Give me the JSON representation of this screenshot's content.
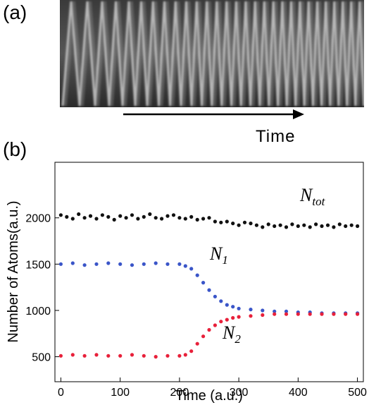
{
  "panel_a": {
    "label": "(a)",
    "arrow_caption": "Time"
  },
  "panel_b": {
    "label": "(b)"
  },
  "chart_data": {
    "type": "scatter",
    "xlabel": "Time (a.u.)",
    "ylabel": "Number of Atoms(a.u.)",
    "xlim": [
      -10,
      510
    ],
    "ylim": [
      230,
      2600
    ],
    "xticks": [
      0,
      100,
      200,
      300,
      400,
      500
    ],
    "yticks": [
      500,
      1000,
      1500,
      2000
    ],
    "grid": false,
    "colors": {
      "N_tot": "#111111",
      "N_1": "#3a55c8",
      "N_2": "#e8203a"
    },
    "series": [
      {
        "name": "N_tot",
        "label_main": "N",
        "label_sub": "tot",
        "points": [
          [
            0,
            2030
          ],
          [
            10,
            2010
          ],
          [
            20,
            1990
          ],
          [
            30,
            2040
          ],
          [
            40,
            2000
          ],
          [
            50,
            2020
          ],
          [
            60,
            1990
          ],
          [
            70,
            2030
          ],
          [
            80,
            2010
          ],
          [
            90,
            1980
          ],
          [
            100,
            2020
          ],
          [
            110,
            2000
          ],
          [
            120,
            2030
          ],
          [
            130,
            1990
          ],
          [
            140,
            2010
          ],
          [
            150,
            2040
          ],
          [
            160,
            2000
          ],
          [
            170,
            1990
          ],
          [
            180,
            2020
          ],
          [
            190,
            2030
          ],
          [
            200,
            2000
          ],
          [
            210,
            1990
          ],
          [
            220,
            2010
          ],
          [
            230,
            1980
          ],
          [
            240,
            1990
          ],
          [
            250,
            2000
          ],
          [
            260,
            1960
          ],
          [
            270,
            1950
          ],
          [
            280,
            1960
          ],
          [
            290,
            1940
          ],
          [
            300,
            1920
          ],
          [
            310,
            1950
          ],
          [
            320,
            1940
          ],
          [
            330,
            1920
          ],
          [
            340,
            1900
          ],
          [
            350,
            1930
          ],
          [
            360,
            1910
          ],
          [
            370,
            1920
          ],
          [
            380,
            1900
          ],
          [
            390,
            1930
          ],
          [
            400,
            1910
          ],
          [
            410,
            1920
          ],
          [
            420,
            1900
          ],
          [
            430,
            1930
          ],
          [
            440,
            1910
          ],
          [
            450,
            1920
          ],
          [
            460,
            1900
          ],
          [
            470,
            1930
          ],
          [
            480,
            1910
          ],
          [
            490,
            1920
          ],
          [
            500,
            1910
          ]
        ]
      },
      {
        "name": "N_1",
        "label_main": "N",
        "label_sub": "1",
        "points": [
          [
            0,
            1500
          ],
          [
            20,
            1510
          ],
          [
            40,
            1490
          ],
          [
            60,
            1500
          ],
          [
            80,
            1510
          ],
          [
            100,
            1500
          ],
          [
            120,
            1490
          ],
          [
            140,
            1500
          ],
          [
            160,
            1510
          ],
          [
            180,
            1500
          ],
          [
            200,
            1500
          ],
          [
            210,
            1480
          ],
          [
            220,
            1450
          ],
          [
            230,
            1380
          ],
          [
            240,
            1300
          ],
          [
            250,
            1220
          ],
          [
            260,
            1150
          ],
          [
            270,
            1100
          ],
          [
            280,
            1060
          ],
          [
            290,
            1040
          ],
          [
            300,
            1020
          ],
          [
            320,
            1010
          ],
          [
            340,
            1000
          ],
          [
            360,
            990
          ],
          [
            380,
            990
          ],
          [
            400,
            980
          ],
          [
            420,
            980
          ],
          [
            440,
            970
          ],
          [
            460,
            970
          ],
          [
            480,
            970
          ],
          [
            500,
            970
          ]
        ]
      },
      {
        "name": "N_2",
        "label_main": "N",
        "label_sub": "2",
        "points": [
          [
            0,
            510
          ],
          [
            20,
            520
          ],
          [
            40,
            510
          ],
          [
            60,
            520
          ],
          [
            80,
            510
          ],
          [
            100,
            510
          ],
          [
            120,
            520
          ],
          [
            140,
            510
          ],
          [
            160,
            500
          ],
          [
            180,
            510
          ],
          [
            200,
            510
          ],
          [
            210,
            520
          ],
          [
            220,
            560
          ],
          [
            230,
            640
          ],
          [
            240,
            720
          ],
          [
            250,
            790
          ],
          [
            260,
            840
          ],
          [
            270,
            880
          ],
          [
            280,
            900
          ],
          [
            290,
            920
          ],
          [
            300,
            930
          ],
          [
            320,
            940
          ],
          [
            340,
            950
          ],
          [
            360,
            960
          ],
          [
            380,
            960
          ],
          [
            400,
            960
          ],
          [
            420,
            960
          ],
          [
            440,
            960
          ],
          [
            460,
            960
          ],
          [
            480,
            960
          ],
          [
            500,
            960
          ]
        ]
      }
    ]
  }
}
